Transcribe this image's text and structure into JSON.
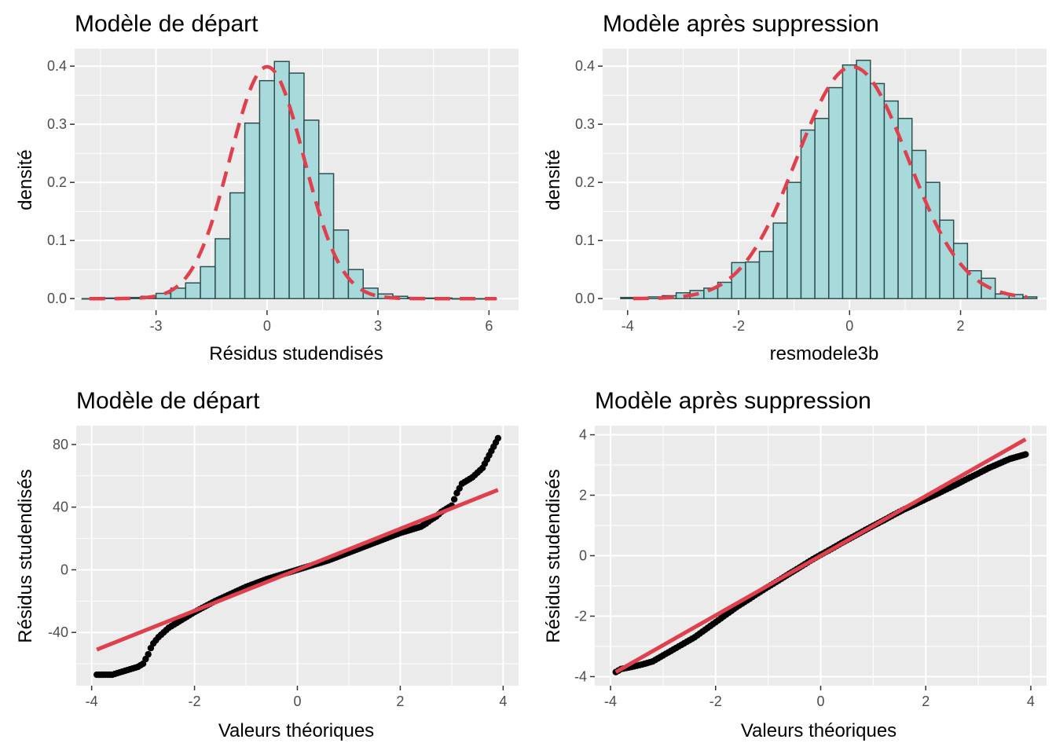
{
  "chart_data": [
    {
      "id": "hist-depart",
      "type": "bar",
      "title": "Modèle de départ",
      "xlabel": "Résidus studendisés",
      "ylabel": "densité",
      "xlim": [
        -5.2,
        6.8
      ],
      "ylim": [
        -0.02,
        0.43
      ],
      "x_ticks": [
        -3,
        0,
        3,
        6
      ],
      "y_ticks": [
        0.0,
        0.1,
        0.2,
        0.3,
        0.4
      ],
      "bin_width": 0.4,
      "bins": [
        {
          "x0": -5.0,
          "density": 0.0
        },
        {
          "x0": -4.6,
          "density": 0.001
        },
        {
          "x0": -4.2,
          "density": 0.001
        },
        {
          "x0": -3.8,
          "density": 0.002
        },
        {
          "x0": -3.4,
          "density": 0.004
        },
        {
          "x0": -3.0,
          "density": 0.009
        },
        {
          "x0": -2.6,
          "density": 0.018
        },
        {
          "x0": -2.2,
          "density": 0.027
        },
        {
          "x0": -1.8,
          "density": 0.055
        },
        {
          "x0": -1.4,
          "density": 0.103
        },
        {
          "x0": -1.0,
          "density": 0.182
        },
        {
          "x0": -0.6,
          "density": 0.302
        },
        {
          "x0": -0.2,
          "density": 0.375
        },
        {
          "x0": 0.2,
          "density": 0.408
        },
        {
          "x0": 0.6,
          "density": 0.388
        },
        {
          "x0": 1.0,
          "density": 0.307
        },
        {
          "x0": 1.4,
          "density": 0.215
        },
        {
          "x0": 1.8,
          "density": 0.118
        },
        {
          "x0": 2.2,
          "density": 0.05
        },
        {
          "x0": 2.6,
          "density": 0.018
        },
        {
          "x0": 3.0,
          "density": 0.008
        },
        {
          "x0": 3.4,
          "density": 0.004
        },
        {
          "x0": 3.8,
          "density": 0.002
        },
        {
          "x0": 4.2,
          "density": 0.001
        },
        {
          "x0": 4.6,
          "density": 0.001
        },
        {
          "x0": 5.0,
          "density": 0.0
        },
        {
          "x0": 5.4,
          "density": 0.0
        },
        {
          "x0": 5.8,
          "density": 0.0
        }
      ],
      "density_curve": {
        "type": "normal",
        "mean": 0.0,
        "sd": 1.0,
        "x_range": [
          -4.8,
          6.2
        ],
        "style": "dashed",
        "color": "#e0404e"
      },
      "fill": "#a8dadc",
      "outline": "#2f4f4f"
    },
    {
      "id": "hist-apres",
      "type": "bar",
      "title": "Modèle après suppression",
      "xlabel": "resmodele3b",
      "ylabel": "densité",
      "xlim": [
        -4.45,
        3.55
      ],
      "ylim": [
        -0.02,
        0.43
      ],
      "x_ticks": [
        -4,
        -2,
        0,
        2
      ],
      "y_ticks": [
        0.0,
        0.1,
        0.2,
        0.3,
        0.4
      ],
      "bin_width": 0.25,
      "bins": [
        {
          "x0": -4.125,
          "density": 0.002
        },
        {
          "x0": -3.875,
          "density": 0.002
        },
        {
          "x0": -3.625,
          "density": 0.003
        },
        {
          "x0": -3.375,
          "density": 0.005
        },
        {
          "x0": -3.125,
          "density": 0.01
        },
        {
          "x0": -2.875,
          "density": 0.014
        },
        {
          "x0": -2.625,
          "density": 0.018
        },
        {
          "x0": -2.375,
          "density": 0.028
        },
        {
          "x0": -2.125,
          "density": 0.062
        },
        {
          "x0": -1.875,
          "density": 0.063
        },
        {
          "x0": -1.625,
          "density": 0.081
        },
        {
          "x0": -1.375,
          "density": 0.13
        },
        {
          "x0": -1.125,
          "density": 0.2
        },
        {
          "x0": -0.875,
          "density": 0.29
        },
        {
          "x0": -0.625,
          "density": 0.31
        },
        {
          "x0": -0.375,
          "density": 0.363
        },
        {
          "x0": -0.125,
          "density": 0.402
        },
        {
          "x0": 0.125,
          "density": 0.41
        },
        {
          "x0": 0.375,
          "density": 0.37
        },
        {
          "x0": 0.625,
          "density": 0.34
        },
        {
          "x0": 0.875,
          "density": 0.31
        },
        {
          "x0": 1.125,
          "density": 0.255
        },
        {
          "x0": 1.375,
          "density": 0.2
        },
        {
          "x0": 1.625,
          "density": 0.135
        },
        {
          "x0": 1.875,
          "density": 0.095
        },
        {
          "x0": 2.125,
          "density": 0.048
        },
        {
          "x0": 2.375,
          "density": 0.035
        },
        {
          "x0": 2.625,
          "density": 0.008
        },
        {
          "x0": 2.875,
          "density": 0.007
        },
        {
          "x0": 3.125,
          "density": 0.003
        }
      ],
      "density_curve": {
        "type": "normal",
        "mean": 0.05,
        "sd": 1.0,
        "x_range": [
          -3.9,
          3.2
        ],
        "style": "dashed",
        "color": "#e0404e"
      },
      "fill": "#a8dadc",
      "outline": "#2f4f4f"
    },
    {
      "id": "qq-depart",
      "type": "scatter",
      "title": "Modèle de départ",
      "xlabel": "Valeurs théoriques",
      "ylabel": "Résidus studendisés",
      "xlim": [
        -4.3,
        4.3
      ],
      "ylim": [
        -74,
        92
      ],
      "x_ticks": [
        -4,
        -2,
        0,
        2,
        4
      ],
      "y_ticks": [
        -40,
        0,
        40,
        80
      ],
      "qq_line": {
        "x": [
          -3.9,
          3.9
        ],
        "y": [
          -51,
          51
        ],
        "color": "#e0404e"
      },
      "points": [
        [
          -3.9,
          -67
        ],
        [
          -3.6,
          -67
        ],
        [
          -3.5,
          -66
        ],
        [
          -3.4,
          -65
        ],
        [
          -3.3,
          -64
        ],
        [
          -3.2,
          -63
        ],
        [
          -3.1,
          -62
        ],
        [
          -3.0,
          -60
        ],
        [
          -2.95,
          -57
        ],
        [
          -2.9,
          -54
        ],
        [
          -2.85,
          -50
        ],
        [
          -2.8,
          -47
        ],
        [
          -2.7,
          -43
        ],
        [
          -2.6,
          -40
        ],
        [
          -2.5,
          -37
        ],
        [
          -2.4,
          -35
        ],
        [
          -2.3,
          -33
        ],
        [
          -2.2,
          -31
        ],
        [
          -2.0,
          -27
        ],
        [
          -1.8,
          -23.5
        ],
        [
          -1.6,
          -20
        ],
        [
          -1.4,
          -17
        ],
        [
          -1.2,
          -14
        ],
        [
          -1.0,
          -11
        ],
        [
          -0.8,
          -8.5
        ],
        [
          -0.6,
          -6
        ],
        [
          -0.4,
          -4
        ],
        [
          -0.2,
          -2
        ],
        [
          0.0,
          0
        ],
        [
          0.2,
          2
        ],
        [
          0.4,
          4
        ],
        [
          0.6,
          6
        ],
        [
          0.8,
          8.5
        ],
        [
          1.0,
          11
        ],
        [
          1.2,
          13.5
        ],
        [
          1.4,
          16
        ],
        [
          1.6,
          18.5
        ],
        [
          1.8,
          21
        ],
        [
          2.0,
          23.5
        ],
        [
          2.2,
          25.5
        ],
        [
          2.4,
          27.5
        ],
        [
          2.5,
          29.5
        ],
        [
          2.6,
          32
        ],
        [
          2.7,
          34
        ],
        [
          2.8,
          37
        ],
        [
          2.9,
          39
        ],
        [
          3.0,
          41
        ],
        [
          3.05,
          45
        ],
        [
          3.1,
          49
        ],
        [
          3.15,
          52
        ],
        [
          3.2,
          55
        ],
        [
          3.3,
          57
        ],
        [
          3.4,
          59
        ],
        [
          3.5,
          62
        ],
        [
          3.6,
          65
        ],
        [
          3.9,
          84
        ]
      ],
      "point_color": "#000000"
    },
    {
      "id": "qq-apres",
      "type": "scatter",
      "title": "Modèle après suppression",
      "xlabel": "Valeurs théoriques",
      "ylabel": "Résidus studendisés",
      "xlim": [
        -4.3,
        4.3
      ],
      "ylim": [
        -4.3,
        4.3
      ],
      "x_ticks": [
        -4,
        -2,
        0,
        2,
        4
      ],
      "y_ticks": [
        -4,
        -2,
        0,
        2,
        4
      ],
      "qq_line": {
        "x": [
          -3.9,
          3.9
        ],
        "y": [
          -3.85,
          3.85
        ],
        "color": "#e0404e"
      },
      "points": [
        [
          -3.9,
          -3.85
        ],
        [
          -3.8,
          -3.75
        ],
        [
          -3.6,
          -3.68
        ],
        [
          -3.4,
          -3.6
        ],
        [
          -3.2,
          -3.5
        ],
        [
          -3.0,
          -3.3
        ],
        [
          -2.8,
          -3.1
        ],
        [
          -2.6,
          -2.9
        ],
        [
          -2.4,
          -2.7
        ],
        [
          -2.2,
          -2.45
        ],
        [
          -2.0,
          -2.2
        ],
        [
          -1.8,
          -1.95
        ],
        [
          -1.6,
          -1.7
        ],
        [
          -1.4,
          -1.48
        ],
        [
          -1.2,
          -1.25
        ],
        [
          -1.0,
          -1.03
        ],
        [
          -0.8,
          -0.82
        ],
        [
          -0.6,
          -0.6
        ],
        [
          -0.4,
          -0.39
        ],
        [
          -0.2,
          -0.17
        ],
        [
          0.0,
          0.03
        ],
        [
          0.2,
          0.22
        ],
        [
          0.4,
          0.42
        ],
        [
          0.6,
          0.61
        ],
        [
          0.8,
          0.8
        ],
        [
          1.0,
          0.99
        ],
        [
          1.2,
          1.17
        ],
        [
          1.4,
          1.36
        ],
        [
          1.6,
          1.54
        ],
        [
          1.8,
          1.7
        ],
        [
          2.0,
          1.87
        ],
        [
          2.2,
          2.03
        ],
        [
          2.4,
          2.2
        ],
        [
          2.6,
          2.37
        ],
        [
          2.8,
          2.55
        ],
        [
          3.0,
          2.72
        ],
        [
          3.2,
          2.9
        ],
        [
          3.4,
          3.05
        ],
        [
          3.6,
          3.2
        ],
        [
          3.9,
          3.35
        ]
      ],
      "point_color": "#000000"
    }
  ]
}
